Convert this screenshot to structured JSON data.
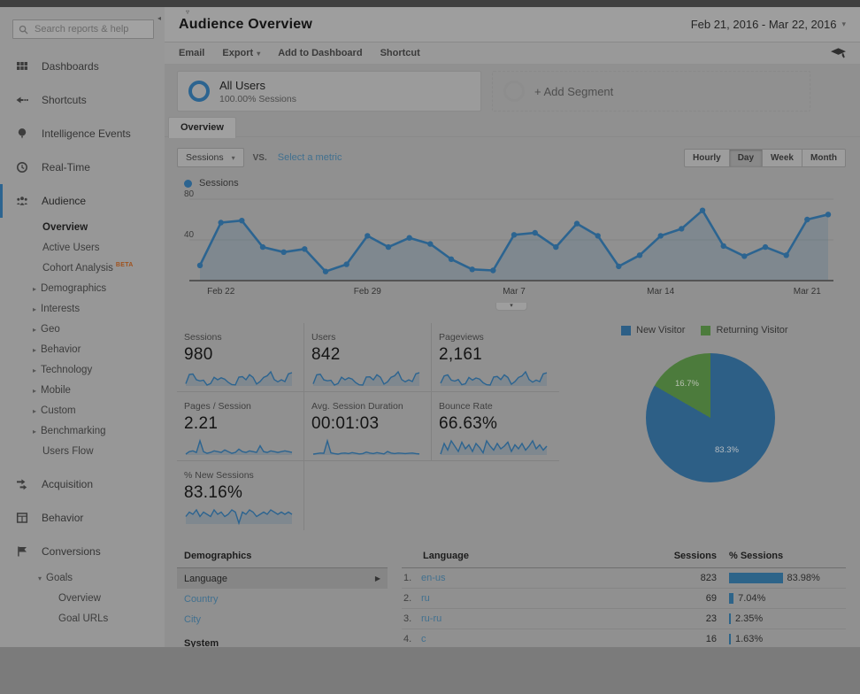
{
  "app": {
    "title": "Audience Overview",
    "date_range": "Feb 21, 2016 - Mar 22, 2016"
  },
  "colors": {
    "accent_blue": "#2c6490",
    "pie_blue": "#2d5f86",
    "pie_green": "#4c7b3c",
    "bar_blue": "#2d6489",
    "link_blue": "#41708f",
    "beta_orange": "#a0521d"
  },
  "sidebar": {
    "search_placeholder": "Search reports & help",
    "items": [
      {
        "label": "Dashboards",
        "icon": "dashboards-grid-icon"
      },
      {
        "label": "Shortcuts",
        "icon": "shortcuts-arrow-icon"
      },
      {
        "label": "Intelligence Events",
        "icon": "intelligence-balloon-icon"
      },
      {
        "label": "Real-Time",
        "icon": "realtime-clock-icon"
      },
      {
        "label": "Audience",
        "icon": "audience-people-icon",
        "active": true,
        "children": [
          {
            "label": "Overview",
            "active": true
          },
          {
            "label": "Active Users"
          },
          {
            "label": "Cohort Analysis",
            "badge": "BETA"
          },
          {
            "label": "Demographics",
            "expandable": true
          },
          {
            "label": "Interests",
            "expandable": true
          },
          {
            "label": "Geo",
            "expandable": true
          },
          {
            "label": "Behavior",
            "expandable": true
          },
          {
            "label": "Technology",
            "expandable": true
          },
          {
            "label": "Mobile",
            "expandable": true
          },
          {
            "label": "Custom",
            "expandable": true
          },
          {
            "label": "Benchmarking",
            "expandable": true
          },
          {
            "label": "Users Flow"
          }
        ]
      },
      {
        "label": "Acquisition",
        "icon": "acquisition-arrows-icon"
      },
      {
        "label": "Behavior",
        "icon": "behavior-page-icon"
      },
      {
        "label": "Conversions",
        "icon": "conversions-flag-icon",
        "children": [
          {
            "label": "Goals",
            "expanded": true,
            "level": 1
          },
          {
            "label": "Overview",
            "level": 2
          },
          {
            "label": "Goal URLs",
            "level": 2
          }
        ]
      }
    ]
  },
  "toolbar": {
    "items": [
      {
        "label": "Email"
      },
      {
        "label": "Export",
        "caret": true
      },
      {
        "label": "Add to Dashboard"
      },
      {
        "label": "Shortcut"
      }
    ]
  },
  "segments": {
    "all_users": {
      "label": "All Users",
      "detail": "100.00% Sessions"
    },
    "add_label": "+ Add Segment"
  },
  "tabs": {
    "overview": "Overview"
  },
  "controls": {
    "metric_select": "Sessions",
    "vs_label": "VS.",
    "select_metric_label": "Select a metric",
    "intervals": [
      "Hourly",
      "Day",
      "Week",
      "Month"
    ],
    "active_interval": "Day",
    "series_legend": "Sessions"
  },
  "chart_data": [
    {
      "type": "line",
      "title": "Sessions by day",
      "x": [
        "Feb 21",
        "Feb 22",
        "Feb 23",
        "Feb 24",
        "Feb 25",
        "Feb 26",
        "Feb 27",
        "Feb 28",
        "Feb 29",
        "Mar 1",
        "Mar 2",
        "Mar 3",
        "Mar 4",
        "Mar 5",
        "Mar 6",
        "Mar 7",
        "Mar 8",
        "Mar 9",
        "Mar 10",
        "Mar 11",
        "Mar 12",
        "Mar 13",
        "Mar 14",
        "Mar 15",
        "Mar 16",
        "Mar 17",
        "Mar 18",
        "Mar 19",
        "Mar 20",
        "Mar 21",
        "Mar 22"
      ],
      "values": [
        15,
        57,
        59,
        33,
        28,
        31,
        9,
        16,
        44,
        33,
        42,
        36,
        21,
        11,
        10,
        45,
        47,
        33,
        56,
        44,
        14,
        25,
        44,
        51,
        69,
        34,
        24,
        33,
        25,
        60,
        65
      ],
      "ylim": [
        0,
        80
      ],
      "yticks": [
        0,
        40,
        80
      ],
      "tick_labels": [
        "Feb 22",
        "Feb 29",
        "Mar 7",
        "Mar 14",
        "Mar 21"
      ],
      "tick_indices": [
        1,
        8,
        15,
        22,
        29
      ],
      "legend": [
        "Sessions"
      ],
      "grid": true
    },
    {
      "type": "pie",
      "title": "New vs Returning Visitors",
      "labels": [
        "New Visitor",
        "Returning Visitor"
      ],
      "values": [
        83.3,
        16.7
      ],
      "unit": "%",
      "colors": [
        "#2d5f86",
        "#4c7b3c"
      ],
      "legend_position": "top"
    }
  ],
  "cards": [
    {
      "label": "Sessions",
      "value": "980",
      "spark": [
        15,
        57,
        59,
        33,
        28,
        31,
        9,
        16,
        44,
        33,
        42,
        36,
        21,
        11,
        10,
        45,
        47,
        33,
        56,
        44,
        14,
        25,
        44,
        51,
        69,
        34,
        24,
        33,
        25,
        60,
        65
      ]
    },
    {
      "label": "Users",
      "value": "842",
      "spark": [
        14,
        50,
        52,
        30,
        26,
        28,
        9,
        15,
        40,
        30,
        38,
        33,
        19,
        10,
        9,
        41,
        42,
        30,
        50,
        40,
        13,
        22,
        40,
        46,
        62,
        31,
        22,
        30,
        23,
        54,
        58
      ]
    },
    {
      "label": "Pageviews",
      "value": "2,161",
      "spark": [
        40,
        110,
        120,
        70,
        60,
        75,
        25,
        35,
        95,
        70,
        90,
        80,
        45,
        25,
        22,
        100,
        105,
        75,
        120,
        95,
        30,
        55,
        95,
        110,
        150,
        75,
        50,
        70,
        55,
        130,
        140
      ]
    },
    {
      "label": "Pages / Session",
      "value": "2.21",
      "spark": [
        1.8,
        2.1,
        2.2,
        2.0,
        3.4,
        2.1,
        1.9,
        2.0,
        2.2,
        2.1,
        2.0,
        2.3,
        2.1,
        1.9,
        2.0,
        2.4,
        2.1,
        2.0,
        2.2,
        2.1,
        2.0,
        2.8,
        2.1,
        2.0,
        2.2,
        2.1,
        2.0,
        2.1,
        2.2,
        2.1,
        2.0
      ]
    },
    {
      "label": "Avg. Session Duration",
      "value": "00:01:03",
      "spark": [
        50,
        55,
        60,
        58,
        180,
        62,
        55,
        50,
        58,
        60,
        55,
        65,
        58,
        52,
        55,
        70,
        60,
        55,
        65,
        58,
        52,
        75,
        60,
        55,
        60,
        58,
        55,
        58,
        60,
        55,
        52
      ]
    },
    {
      "label": "Bounce Rate",
      "value": "66.63%",
      "spark": [
        60,
        68,
        63,
        70,
        66,
        62,
        69,
        64,
        67,
        62,
        68,
        65,
        61,
        70,
        66,
        63,
        68,
        64,
        66,
        69,
        62,
        67,
        64,
        68,
        63,
        66,
        70,
        64,
        67,
        63,
        66
      ]
    },
    {
      "label": "% New Sessions",
      "value": "83.16%",
      "spark": [
        82,
        84,
        83,
        85,
        82,
        84,
        83,
        82,
        85,
        83,
        84,
        82,
        83,
        85,
        84,
        79,
        84,
        83,
        85,
        84,
        82,
        83,
        84,
        83,
        85,
        84,
        83,
        84,
        83,
        84,
        83
      ]
    }
  ],
  "demographics": {
    "title": "Demographics",
    "items": [
      {
        "label": "Language",
        "selected": true
      },
      {
        "label": "Country",
        "link": true
      },
      {
        "label": "City",
        "link": true
      },
      {
        "label": "System",
        "header": true
      }
    ]
  },
  "language_table": {
    "headers": [
      "Language",
      "Sessions",
      "% Sessions"
    ],
    "rows": [
      {
        "rank": "1.",
        "label": "en-us",
        "sessions": "823",
        "percent": "83.98%",
        "pct": 83.98
      },
      {
        "rank": "2.",
        "label": "ru",
        "sessions": "69",
        "percent": "7.04%",
        "pct": 7.04
      },
      {
        "rank": "3.",
        "label": "ru-ru",
        "sessions": "23",
        "percent": "2.35%",
        "pct": 2.35
      },
      {
        "rank": "4.",
        "label": "c",
        "sessions": "16",
        "percent": "1.63%",
        "pct": 1.63
      }
    ]
  }
}
